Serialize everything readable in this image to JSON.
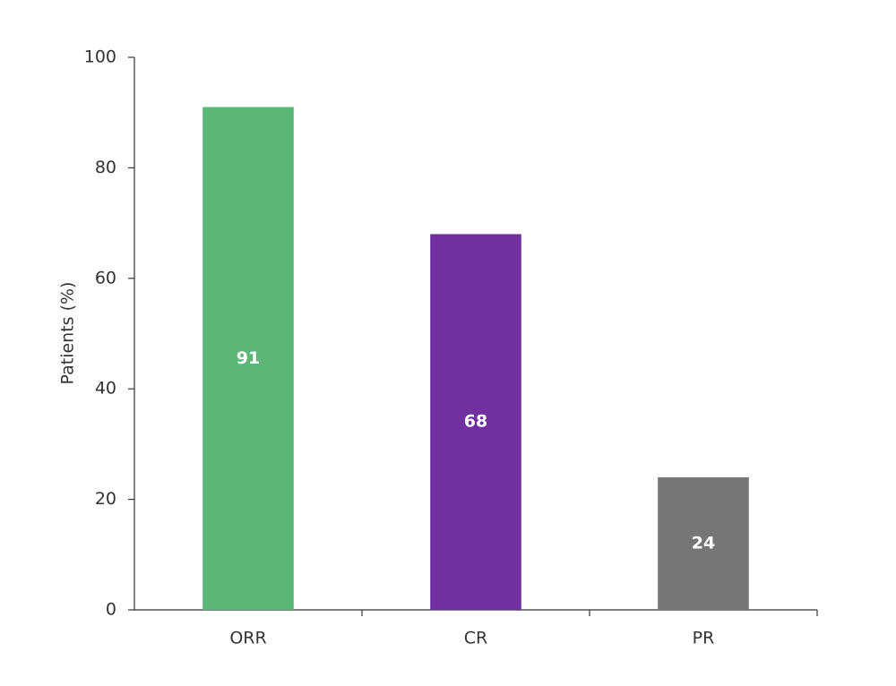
{
  "chart_data": {
    "type": "bar",
    "y_label": "Patients (%)",
    "categories": [
      "ORR",
      "CR",
      "PR"
    ],
    "values": [
      91,
      68,
      24
    ],
    "colors": [
      "#5cb678",
      "#7030a0",
      "#767676"
    ],
    "ylim": [
      0,
      100
    ],
    "yticks": [
      0,
      20,
      40,
      60,
      80,
      100
    ],
    "grid": false
  }
}
